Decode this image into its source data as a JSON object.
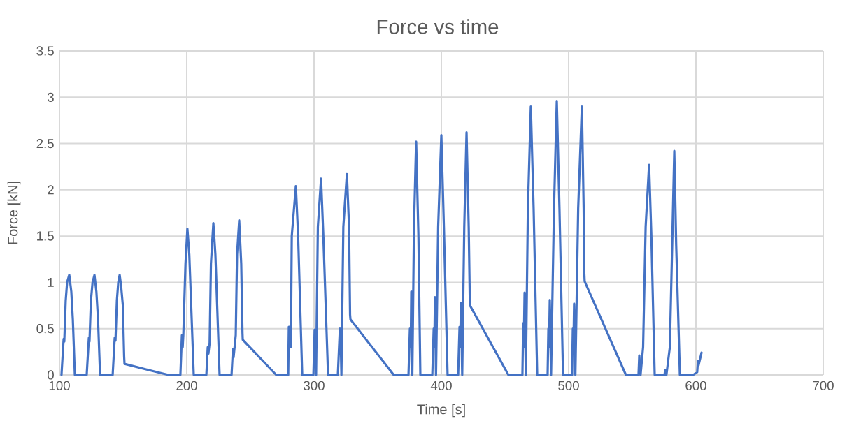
{
  "chart_data": {
    "type": "line",
    "title": "Force vs time",
    "xlabel": "Time [s]",
    "ylabel": "Force [kN]",
    "xlim": [
      100,
      700
    ],
    "xticks": [
      100,
      200,
      300,
      400,
      500,
      600,
      700
    ],
    "ylim": [
      0,
      3.5
    ],
    "yticks": [
      0,
      0.5,
      1,
      1.5,
      2,
      2.5,
      3,
      3.5
    ],
    "grid": true,
    "marker": "none",
    "line_style": "solid",
    "series": [
      {
        "color": "#4472c4",
        "x": [
          101.6,
          103.3,
          103.8,
          104.9,
          106,
          107.7,
          109.3,
          110.5,
          112.1,
          121.4,
          123.1,
          123.6,
          124.7,
          126,
          127.5,
          129,
          130.3,
          131.9,
          141.8,
          143.4,
          144,
          145.1,
          146.2,
          147.3,
          148.5,
          149.8,
          150.8,
          151.1,
          168,
          185.7,
          195,
          196.2,
          196.8,
          197.3,
          199,
          200.5,
          202,
          205.5,
          215.4,
          216.5,
          217,
          218,
          219,
          220.9,
          222.5,
          225.8,
          235.2,
          236.3,
          236.8,
          238.5,
          239.5,
          241.2,
          242.8,
          243.8,
          244,
          270.3,
          279.7,
          280.2,
          281.3,
          281.8,
          282.5,
          285.7,
          287.5,
          290.7,
          299.5,
          300.5,
          301,
          301.6,
          303,
          305.5,
          307.3,
          311,
          318.7,
          320.3,
          321,
          321.5,
          323,
          325.8,
          327.5,
          328.3,
          328.6,
          362.6,
          374.2,
          375.3,
          376,
          376.4,
          377.2,
          378.5,
          380.2,
          382,
          383.5,
          392.9,
          394,
          394.5,
          395,
          395.8,
          397.5,
          400,
          402,
          404.9,
          413.2,
          414.3,
          414.8,
          415.4,
          416.4,
          418,
          419.8,
          421.5,
          422.3,
          422.5,
          452.7,
          463.7,
          464.3,
          464.8,
          465.4,
          466.4,
          468,
          470.3,
          472.5,
          475.3,
          483.5,
          484.1,
          484.6,
          485.2,
          486.2,
          488.5,
          490.7,
          492.8,
          495.6,
          502.7,
          503.3,
          503.8,
          504.3,
          505.3,
          507.5,
          510.4,
          511.8,
          512.3,
          512.6,
          545,
          554.9,
          555.5,
          556.5,
          558.5,
          560.5,
          563.2,
          565,
          567.6,
          575.3,
          575.8,
          576.8,
          579.5,
          581,
          583,
          584.5,
          587.4,
          597.8,
          601,
          601.6,
          602,
          604.4
        ],
        "values": [
          0,
          0.39,
          0.36,
          0.8,
          1.0,
          1.08,
          0.9,
          0.6,
          0,
          0,
          0.4,
          0.36,
          0.8,
          1.0,
          1.08,
          0.9,
          0.6,
          0,
          0,
          0.4,
          0.37,
          0.8,
          1.0,
          1.08,
          0.95,
          0.75,
          0.2,
          0.12,
          0.06,
          0,
          0,
          0.43,
          0.3,
          0.43,
          1.2,
          1.58,
          1.3,
          0,
          0,
          0.3,
          0.23,
          0.35,
          1.2,
          1.64,
          1.3,
          0,
          0,
          0.28,
          0.19,
          0.43,
          1.3,
          1.67,
          1.2,
          0.45,
          0.38,
          0,
          0,
          0.52,
          0.52,
          0.3,
          1.5,
          2.04,
          1.5,
          0,
          0,
          0.49,
          0.4,
          0,
          1.6,
          2.12,
          1.5,
          0,
          0,
          0.5,
          0.35,
          0,
          1.6,
          2.17,
          1.6,
          0.65,
          0.6,
          0,
          0,
          0.5,
          0.3,
          0.9,
          0,
          1.6,
          2.52,
          1.5,
          0,
          0,
          0.5,
          0.3,
          0.84,
          0,
          1.6,
          2.59,
          1.6,
          0,
          0,
          0.52,
          0.3,
          0.78,
          0,
          1.6,
          2.62,
          1.6,
          0.86,
          0.75,
          0,
          0,
          0.56,
          0.3,
          0.89,
          0,
          1.8,
          2.9,
          1.8,
          0,
          0,
          0.5,
          0.3,
          0.81,
          0,
          1.8,
          2.96,
          1.8,
          0,
          0,
          0.5,
          0.3,
          0.77,
          0,
          1.8,
          2.9,
          1.8,
          1.1,
          1.01,
          0,
          0,
          0.21,
          0,
          0.3,
          1.6,
          2.27,
          1.5,
          0,
          0,
          0.05,
          0,
          0.3,
          1.2,
          2.42,
          1.4,
          0,
          0,
          0.03,
          0.15,
          0.1,
          0.24
        ]
      }
    ]
  }
}
